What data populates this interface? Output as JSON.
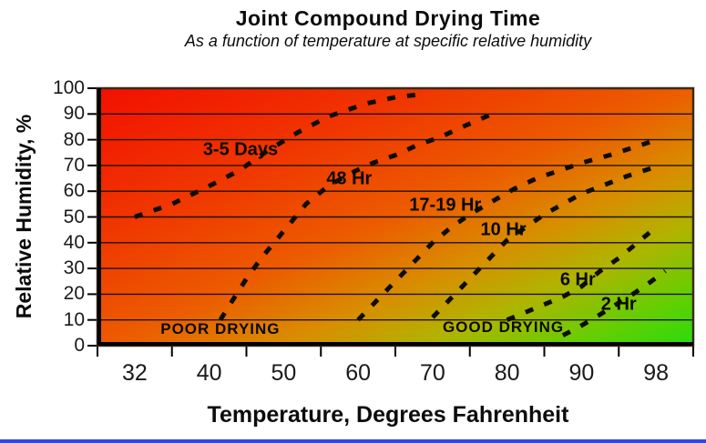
{
  "figure": {
    "title": "Joint Compound Drying Time",
    "subtitle": "As a function of temperature at specific relative humidity"
  },
  "chart_data": {
    "type": "line",
    "title": "Joint Compound Drying Time",
    "subtitle": "As a function of temperature at specific relative humidity",
    "xlabel": "Temperature, Degrees Fahrenheit",
    "ylabel": "Relative Humidity, %",
    "x_ticks": [
      32,
      40,
      50,
      60,
      70,
      80,
      90,
      98
    ],
    "y_ticks": [
      0,
      10,
      20,
      30,
      40,
      50,
      60,
      70,
      80,
      90,
      100
    ],
    "ylim": [
      0,
      100
    ],
    "grid": "horizontal black gridlines every 10%",
    "legend": "none - curves labeled inline",
    "style": "bold black dashed iso-time curves over a red-to-green diagonal gradient (red = poor drying, green = good drying)",
    "series": [
      {
        "name": "3-5 Days",
        "points": [
          [
            32,
            50
          ],
          [
            36,
            55
          ],
          [
            40,
            62
          ],
          [
            44,
            68
          ],
          [
            48,
            76
          ],
          [
            52,
            83
          ],
          [
            56,
            89
          ],
          [
            61,
            94
          ],
          [
            65,
            96.5
          ],
          [
            68,
            97.5
          ]
        ]
      },
      {
        "name": "48 Hr",
        "points": [
          [
            41.5,
            10
          ],
          [
            43,
            17
          ],
          [
            45,
            26
          ],
          [
            47,
            34
          ],
          [
            49,
            41
          ],
          [
            51,
            48
          ],
          [
            53,
            55
          ],
          [
            56,
            62
          ],
          [
            59,
            67
          ],
          [
            62,
            71
          ],
          [
            65,
            74
          ],
          [
            68,
            78
          ],
          [
            71,
            81
          ],
          [
            74,
            85
          ],
          [
            78,
            90
          ]
        ]
      },
      {
        "name": "17-19 Hr",
        "points": [
          [
            60,
            10
          ],
          [
            62,
            16
          ],
          [
            64,
            22
          ],
          [
            66,
            28
          ],
          [
            68,
            34
          ],
          [
            70,
            40
          ],
          [
            72.5,
            46
          ],
          [
            75,
            51
          ],
          [
            78,
            56
          ],
          [
            81,
            61
          ],
          [
            84,
            65
          ],
          [
            87,
            68
          ],
          [
            90,
            71
          ],
          [
            93,
            74
          ],
          [
            96,
            77.5
          ],
          [
            98.5,
            80.5
          ]
        ]
      },
      {
        "name": "10 Hr",
        "points": [
          [
            70,
            11
          ],
          [
            72,
            17
          ],
          [
            74,
            23
          ],
          [
            76,
            29
          ],
          [
            78,
            35
          ],
          [
            80,
            41
          ],
          [
            82.5,
            46
          ],
          [
            85,
            51
          ],
          [
            87.5,
            55
          ],
          [
            90,
            59
          ],
          [
            92.5,
            62.5
          ],
          [
            95,
            66
          ],
          [
            98,
            69.5
          ]
        ]
      },
      {
        "name": "6 Hr",
        "points": [
          [
            80,
            10
          ],
          [
            82.5,
            13
          ],
          [
            85,
            16
          ],
          [
            87.5,
            19
          ],
          [
            90,
            23
          ],
          [
            92,
            29
          ],
          [
            94,
            34
          ],
          [
            96,
            40
          ],
          [
            98,
            46
          ]
        ]
      },
      {
        "name": "2 Hr",
        "points": [
          [
            87.5,
            4
          ],
          [
            89.5,
            7
          ],
          [
            91.5,
            11
          ],
          [
            93.5,
            15.5
          ],
          [
            95.5,
            20
          ],
          [
            97.5,
            25
          ],
          [
            99,
            29
          ]
        ]
      }
    ],
    "annotations": [
      {
        "text": "3-5 Days",
        "kind": "curve",
        "T": 44.2,
        "h": 76
      },
      {
        "text": "48 Hr",
        "kind": "curve",
        "T": 58.8,
        "h": 64.5
      },
      {
        "text": "17-19 Hr",
        "kind": "curve",
        "T": 71.7,
        "h": 54.5
      },
      {
        "text": "10 Hr",
        "kind": "curve",
        "T": 79.5,
        "h": 45
      },
      {
        "text": "6 Hr",
        "kind": "curve",
        "T": 89.5,
        "h": 25.5
      },
      {
        "text": "2 Hr",
        "kind": "curve",
        "T": 94,
        "h": 16
      },
      {
        "text": "POOR DRYING",
        "kind": "region",
        "T": 41.5,
        "h": 6.5
      },
      {
        "text": "GOOD DRYING",
        "kind": "region",
        "T": 79.5,
        "h": 7
      }
    ]
  },
  "colors": {
    "poor_drying_red": "#f21000",
    "mid_orange": "#ec5c00",
    "mid_olive": "#b0b400",
    "good_drying_green": "#28dc0e",
    "curve_black": "#0d0d00",
    "bottom_rule_blue": "#3547d4"
  }
}
